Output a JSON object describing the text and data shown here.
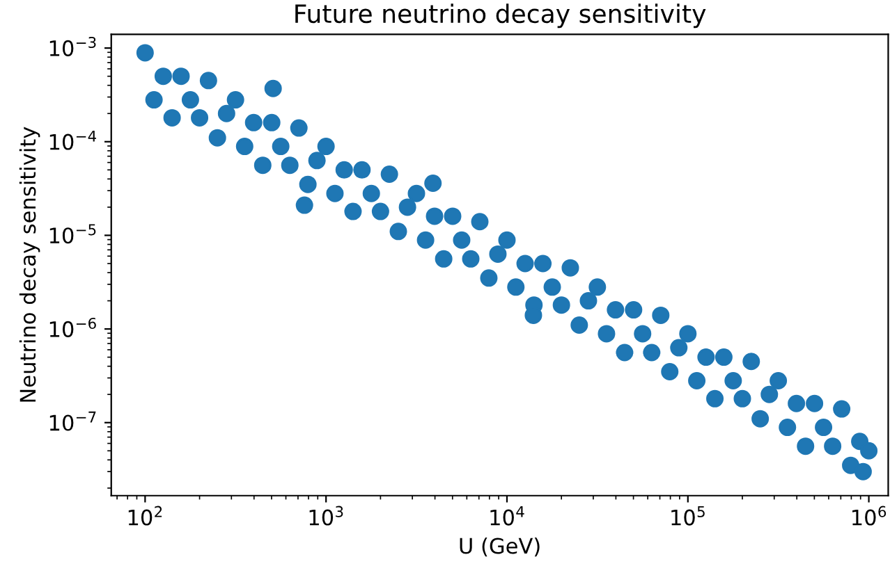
{
  "chart_data": {
    "type": "scatter",
    "title": "Future neutrino decay sensitivity",
    "xlabel": "U (GeV)",
    "ylabel": "Neutrino decay sensitivity",
    "log": "xy",
    "marker": "circle",
    "grid": false,
    "xlim": [
      65,
      1280000
    ],
    "ylim": [
      1.66e-08,
      0.0014
    ],
    "xticks": [
      {
        "value": 100,
        "label": "10$^{2}$"
      },
      {
        "value": 1000,
        "label": "10$^{3}$"
      },
      {
        "value": 10000,
        "label": "10$^{4}$"
      },
      {
        "value": 100000,
        "label": "10$^{5}$"
      },
      {
        "value": 1000000,
        "label": "10$^{6}$"
      }
    ],
    "yticks": [
      {
        "value": 0.001,
        "label": "10$^{−3}$"
      },
      {
        "value": 0.0001,
        "label": "10$^{−4}$"
      },
      {
        "value": 1e-05,
        "label": "10$^{−5}$"
      },
      {
        "value": 1e-06,
        "label": "10$^{−6}$"
      },
      {
        "value": 1e-07,
        "label": "10$^{−7}$"
      }
    ],
    "series": [
      {
        "color": "#1f77b4",
        "x": [
          100,
          112,
          126,
          141,
          158,
          178,
          200,
          224,
          251,
          282,
          316,
          355,
          398,
          447,
          501,
          562,
          631,
          708,
          794,
          891,
          1000,
          1120,
          1260,
          1410,
          1580,
          1780,
          2000,
          2240,
          2510,
          2820,
          3160,
          3550,
          3980,
          4470,
          5010,
          5620,
          6310,
          7080,
          7940,
          8910,
          10000,
          11200,
          12600,
          14100,
          15800,
          17800,
          20000,
          22400,
          25100,
          28200,
          31600,
          35500,
          39800,
          44700,
          50100,
          56200,
          63100,
          70800,
          79400,
          89100,
          100000,
          112000,
          126000,
          141000,
          158000,
          178000,
          200000,
          224000,
          251000,
          282000,
          316000,
          355000,
          398000,
          447000,
          501000,
          562000,
          631000,
          708000,
          794000,
          891000,
          1000000,
          510,
          760,
          3900,
          14000,
          930000
        ],
        "values": [
          0.00089,
          0.00028,
          0.0005,
          0.00018,
          0.0005,
          0.00028,
          0.00018,
          0.00045,
          0.00011,
          0.0002,
          0.00028,
          8.9e-05,
          0.00016,
          5.6e-05,
          0.00016,
          8.9e-05,
          5.6e-05,
          0.00014,
          3.5e-05,
          6.3e-05,
          8.9e-05,
          2.8e-05,
          5e-05,
          1.8e-05,
          5e-05,
          2.8e-05,
          1.8e-05,
          4.5e-05,
          1.1e-05,
          2e-05,
          2.8e-05,
          8.9e-06,
          1.6e-05,
          5.6e-06,
          1.6e-05,
          8.9e-06,
          5.6e-06,
          1.4e-05,
          3.5e-06,
          6.3e-06,
          8.9e-06,
          2.8e-06,
          5e-06,
          1.8e-06,
          5e-06,
          2.8e-06,
          1.8e-06,
          4.5e-06,
          1.1e-06,
          2e-06,
          2.8e-06,
          8.9e-07,
          1.6e-06,
          5.6e-07,
          1.6e-06,
          8.9e-07,
          5.6e-07,
          1.4e-06,
          3.5e-07,
          6.3e-07,
          8.9e-07,
          2.8e-07,
          5e-07,
          1.8e-07,
          5e-07,
          2.8e-07,
          1.8e-07,
          4.5e-07,
          1.1e-07,
          2e-07,
          2.8e-07,
          8.9e-08,
          1.6e-07,
          5.6e-08,
          1.6e-07,
          8.9e-08,
          5.6e-08,
          1.4e-07,
          3.5e-08,
          6.3e-08,
          5e-08,
          0.00037,
          2.1e-05,
          3.6e-05,
          1.4e-06,
          3e-08
        ]
      }
    ]
  }
}
